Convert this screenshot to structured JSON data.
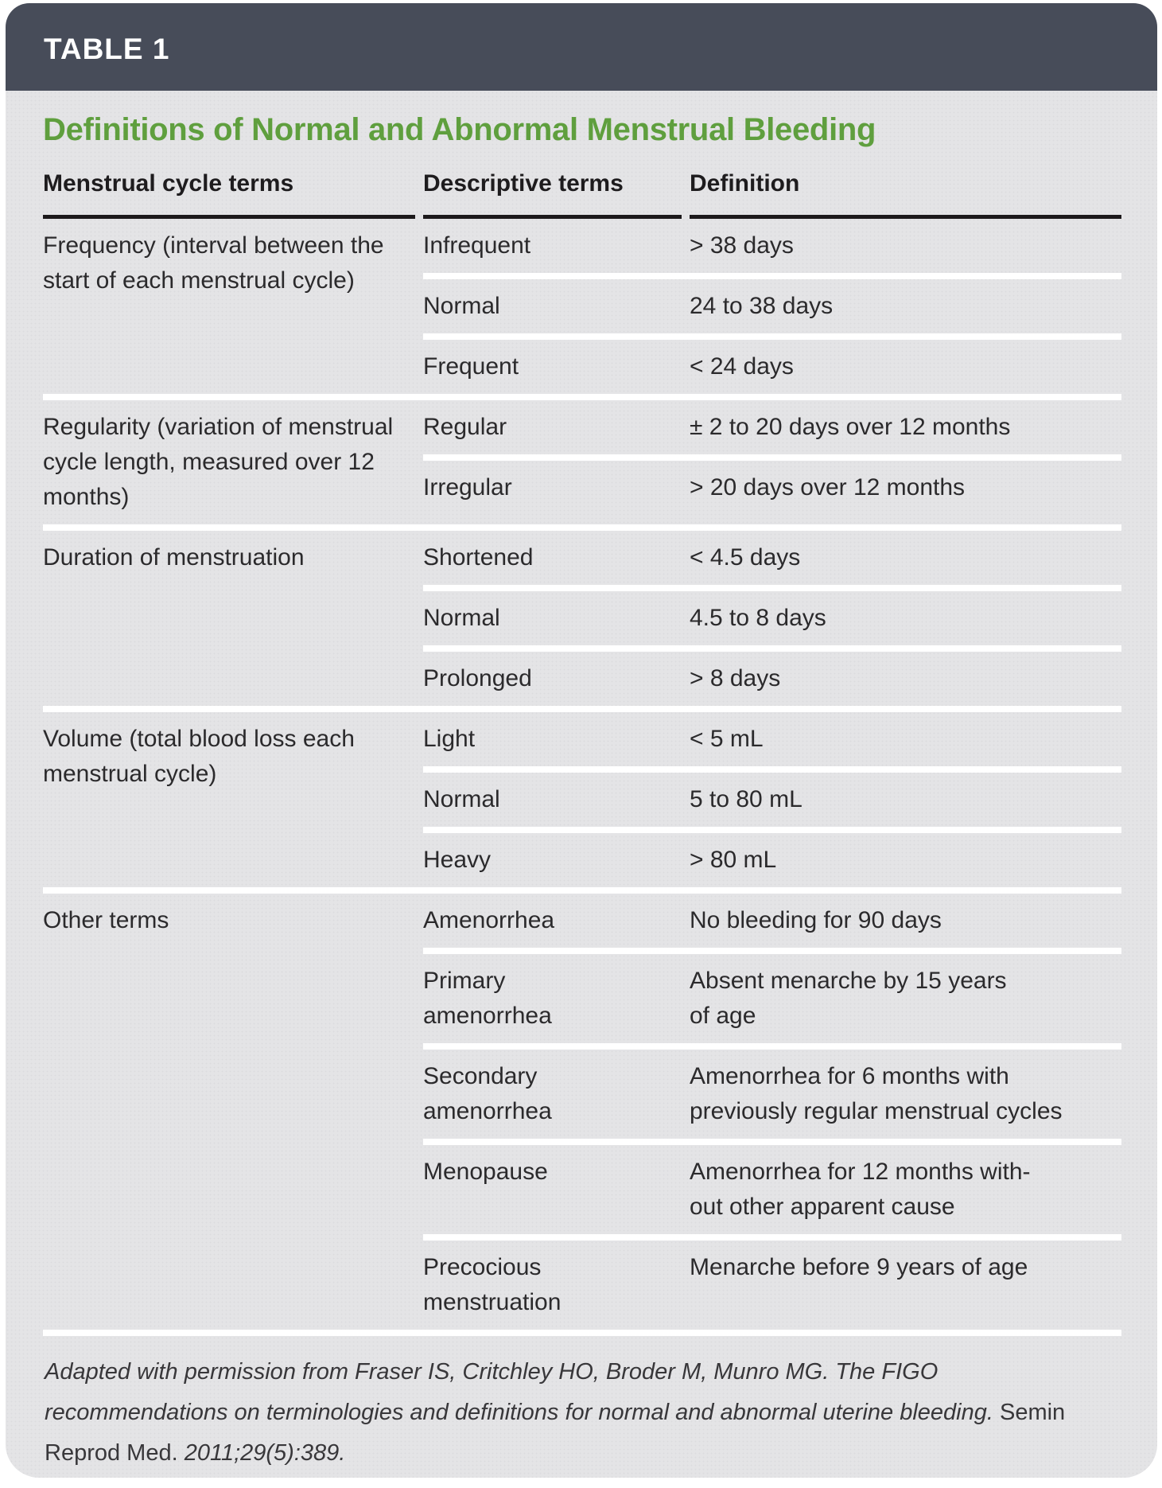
{
  "colors": {
    "header_bar": "#474c59",
    "card_background": "#e4e4e6",
    "title_green": "#5f9f3e",
    "rule_black": "#1c191b",
    "separator_white": "#ffffff"
  },
  "table_tag": "TABLE 1",
  "title": "Definitions of Normal and Abnormal Menstrual Bleeding",
  "columns": {
    "col1": "Menstrual cycle terms",
    "col2": "Descriptive terms",
    "col3": "Definition"
  },
  "groups": [
    {
      "term": "Frequency (interval between the start of each menstrual cycle)",
      "rows": [
        {
          "descriptive": "Infrequent",
          "definition": "> 38 days"
        },
        {
          "descriptive": "Normal",
          "definition": "24 to 38 days"
        },
        {
          "descriptive": "Frequent",
          "definition": "< 24 days"
        }
      ]
    },
    {
      "term": "Regularity (variation of menstrual cycle length, measured over 12 months)",
      "rows": [
        {
          "descriptive": "Regular",
          "definition": "± 2 to 20 days over 12 months"
        },
        {
          "descriptive": "Irregular",
          "definition": "> 20 days over 12 months"
        }
      ]
    },
    {
      "term": "Duration of menstruation",
      "rows": [
        {
          "descriptive": "Shortened",
          "definition": "< 4.5 days"
        },
        {
          "descriptive": "Normal",
          "definition": "4.5 to 8 days"
        },
        {
          "descriptive": "Prolonged",
          "definition": "> 8 days"
        }
      ]
    },
    {
      "term": "Volume (total blood loss each menstrual cycle)",
      "rows": [
        {
          "descriptive": "Light",
          "definition": "< 5 mL"
        },
        {
          "descriptive": "Normal",
          "definition": "5 to 80 mL"
        },
        {
          "descriptive": "Heavy",
          "definition": "> 80 mL"
        }
      ]
    },
    {
      "term": "Other terms",
      "rows": [
        {
          "descriptive": "Amenorrhea",
          "definition": "No bleeding for 90 days"
        },
        {
          "descriptive": "Primary\namenorrhea",
          "definition": "Absent menarche by 15 years\nof age"
        },
        {
          "descriptive": "Secondary\namenorrhea",
          "definition": "Amenorrhea for 6 months with\npreviously regular menstrual cycles"
        },
        {
          "descriptive": "Menopause",
          "definition": "Amenorrhea for 12 months with-\nout other apparent cause"
        },
        {
          "descriptive": "Precocious\nmenstruation",
          "definition": "Menarche before 9 years of age"
        }
      ]
    }
  ],
  "footnote": {
    "part1": "Adapted with permission from Fraser IS, Critchley HO, Broder M, Munro MG. The FIGO recommendations on terminologies and definitions for normal and abnormal uterine bleeding. ",
    "journal": "Semin Reprod Med.",
    "part2": " 2011;29(5):389."
  }
}
